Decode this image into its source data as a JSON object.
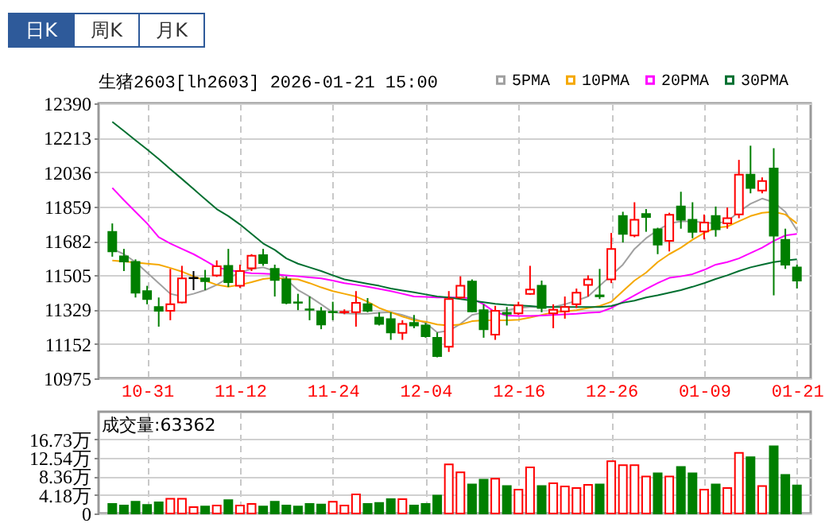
{
  "chart_data": [
    {
      "type": "candlestick",
      "title": "生猪2603[lh2603] 2026-01-21 15:00",
      "annotations": [
        "日K",
        "周K",
        "月K"
      ],
      "categories": [
        null,
        null,
        null,
        "10-31",
        null,
        null,
        null,
        null,
        null,
        null,
        null,
        "11-12",
        null,
        null,
        null,
        null,
        null,
        null,
        null,
        "11-24",
        null,
        null,
        null,
        null,
        null,
        null,
        null,
        "12-04",
        null,
        null,
        null,
        null,
        null,
        null,
        null,
        "12-16",
        null,
        null,
        null,
        null,
        null,
        null,
        null,
        "12-26",
        null,
        null,
        null,
        null,
        null,
        null,
        null,
        "01-09",
        null,
        null,
        null,
        null,
        null,
        null,
        null,
        "01-21"
      ],
      "ohlc": [
        [
          11729,
          11772,
          11601,
          11628
        ],
        [
          11603,
          11641,
          11527,
          11576
        ],
        [
          11574,
          11587,
          11391,
          11416
        ],
        [
          11424,
          11451,
          11356,
          11383
        ],
        [
          11342,
          11391,
          11241,
          11323
        ],
        [
          11323,
          11538,
          11274,
          11356
        ],
        [
          11366,
          11554,
          11361,
          11489
        ],
        [
          11492,
          11527,
          11429,
          11490
        ],
        [
          11489,
          11533,
          11429,
          11475
        ],
        [
          11505,
          11582,
          11497,
          11552
        ],
        [
          11554,
          11641,
          11445,
          11470
        ],
        [
          11451,
          11560,
          11440,
          11527
        ],
        [
          11541,
          11614,
          11527,
          11606
        ],
        [
          11609,
          11641,
          11554,
          11568
        ],
        [
          11538,
          11560,
          11396,
          11481
        ],
        [
          11484,
          11500,
          11356,
          11364
        ],
        [
          11366,
          11410,
          11326,
          11364
        ],
        [
          11330,
          11396,
          11274,
          11328
        ],
        [
          11320,
          11342,
          11228,
          11252
        ],
        [
          11317,
          11369,
          11274,
          11315
        ],
        [
          11315,
          11330,
          11305,
          11317
        ],
        [
          11315,
          11424,
          11241,
          11364
        ],
        [
          11356,
          11388,
          11315,
          11323
        ],
        [
          11288,
          11315,
          11247,
          11255
        ],
        [
          11280,
          11315,
          11173,
          11211
        ],
        [
          11209,
          11274,
          11173,
          11255
        ],
        [
          11260,
          11301,
          11233,
          11247
        ],
        [
          11247,
          11260,
          11184,
          11192
        ],
        [
          11184,
          11211,
          11083,
          11089
        ],
        [
          11138,
          11424,
          11111,
          11383
        ],
        [
          11391,
          11500,
          11383,
          11451
        ],
        [
          11473,
          11484,
          11315,
          11320
        ],
        [
          11326,
          11356,
          11184,
          11228
        ],
        [
          11200,
          11348,
          11173,
          11323
        ],
        [
          11312,
          11342,
          11247,
          11307
        ],
        [
          11309,
          11369,
          11301,
          11350
        ],
        [
          11410,
          11554,
          11405,
          11432
        ],
        [
          11451,
          11478,
          11315,
          11337
        ],
        [
          11309,
          11356,
          11233,
          11328
        ],
        [
          11320,
          11396,
          11282,
          11342
        ],
        [
          11356,
          11437,
          11337,
          11416
        ],
        [
          11456,
          11505,
          11396,
          11484
        ],
        [
          11402,
          11538,
          11383,
          11397
        ],
        [
          11484,
          11723,
          11465,
          11641
        ],
        [
          11810,
          11832,
          11674,
          11718
        ],
        [
          11710,
          11881,
          11701,
          11791
        ],
        [
          11821,
          11846,
          11729,
          11805
        ],
        [
          11742,
          11750,
          11614,
          11663
        ],
        [
          11682,
          11827,
          11628,
          11816
        ],
        [
          11859,
          11935,
          11745,
          11791
        ],
        [
          11791,
          11881,
          11696,
          11729
        ],
        [
          11731,
          11818,
          11690,
          11777
        ],
        [
          11810,
          11859,
          11704,
          11742
        ],
        [
          11772,
          11854,
          11745,
          11799
        ],
        [
          11818,
          12099,
          11799,
          12023
        ],
        [
          12023,
          12172,
          11927,
          11954
        ],
        [
          11941,
          12009,
          11927,
          11990
        ],
        [
          12055,
          12159,
          11402,
          11709
        ],
        [
          11688,
          11745,
          11538,
          11560
        ],
        [
          11546,
          11560,
          11437,
          11478
        ]
      ],
      "colors": [
        "#007f00",
        "#007f00",
        "#007f00",
        "#007f00",
        "#007f00",
        "#ff0000",
        "#ff0000",
        "#000000",
        "#007f00",
        "#ff0000",
        "#007f00",
        "#ff0000",
        "#ff0000",
        "#007f00",
        "#007f00",
        "#007f00",
        "#007f00",
        "#007f00",
        "#007f00",
        "#007f00",
        "#ff0000",
        "#ff0000",
        "#007f00",
        "#007f00",
        "#007f00",
        "#ff0000",
        "#007f00",
        "#007f00",
        "#007f00",
        "#ff0000",
        "#ff0000",
        "#007f00",
        "#007f00",
        "#ff0000",
        "#007f00",
        "#ff0000",
        "#ff0000",
        "#007f00",
        "#ff0000",
        "#ff0000",
        "#ff0000",
        "#ff0000",
        "#007f00",
        "#ff0000",
        "#007f00",
        "#ff0000",
        "#007f00",
        "#007f00",
        "#ff0000",
        "#007f00",
        "#007f00",
        "#ff0000",
        "#007f00",
        "#ff0000",
        "#ff0000",
        "#007f00",
        "#ff0000",
        "#007f00",
        "#007f00",
        "#007f00"
      ],
      "series": [
        {
          "name": "5PMA",
          "type": "line",
          "color": "#a0a0a0",
          "values": [
            11641,
            11614,
            11573,
            11519,
            11465,
            11410,
            11396,
            11410,
            11429,
            11456,
            11492,
            11519,
            11538,
            11546,
            11527,
            11484,
            11429,
            11396,
            11356,
            11315,
            11309,
            11307,
            11307,
            11312,
            11315,
            11301,
            11282,
            11260,
            11211,
            11220,
            11255,
            11301,
            11315,
            11320,
            11326,
            11337,
            11342,
            11342,
            11342,
            11356,
            11375,
            11396,
            11451,
            11505,
            11560,
            11641,
            11696,
            11737,
            11772,
            11783,
            11783,
            11777,
            11772,
            11783,
            11832,
            11873,
            11900,
            11881,
            11832,
            11737
          ]
        },
        {
          "name": "10PMA",
          "type": "line",
          "color": "#f5a800",
          "values": [
            11581,
            11576,
            11571,
            11565,
            11560,
            11543,
            11524,
            11500,
            11478,
            11456,
            11446,
            11456,
            11470,
            11486,
            11492,
            11486,
            11484,
            11465,
            11443,
            11424,
            11410,
            11396,
            11369,
            11337,
            11315,
            11293,
            11274,
            11266,
            11252,
            11247,
            11252,
            11269,
            11274,
            11274,
            11274,
            11277,
            11288,
            11301,
            11315,
            11320,
            11326,
            11337,
            11347,
            11369,
            11424,
            11478,
            11519,
            11573,
            11614,
            11647,
            11688,
            11723,
            11750,
            11756,
            11783,
            11810,
            11827,
            11832,
            11818,
            11772
          ]
        },
        {
          "name": "20PMA",
          "type": "line",
          "color": "#ff00ff",
          "values": [
            11955,
            11892,
            11832,
            11772,
            11701,
            11669,
            11641,
            11614,
            11581,
            11546,
            11533,
            11522,
            11516,
            11514,
            11511,
            11505,
            11500,
            11494,
            11489,
            11478,
            11465,
            11456,
            11446,
            11435,
            11424,
            11410,
            11396,
            11394,
            11391,
            11391,
            11391,
            11386,
            11356,
            11315,
            11298,
            11296,
            11296,
            11298,
            11301,
            11304,
            11307,
            11312,
            11315,
            11337,
            11369,
            11402,
            11435,
            11465,
            11492,
            11500,
            11511,
            11533,
            11560,
            11573,
            11592,
            11620,
            11647,
            11682,
            11710,
            11718
          ]
        },
        {
          "name": "30PMA",
          "type": "line",
          "color": "#006f30",
          "values": [
            12295,
            12248,
            12200,
            12153,
            12104,
            12052,
            12001,
            11949,
            11897,
            11846,
            11810,
            11767,
            11718,
            11669,
            11636,
            11592,
            11565,
            11546,
            11527,
            11505,
            11484,
            11473,
            11462,
            11451,
            11437,
            11427,
            11418,
            11407,
            11396,
            11391,
            11383,
            11375,
            11367,
            11358,
            11353,
            11350,
            11347,
            11342,
            11342,
            11342,
            11342,
            11342,
            11342,
            11347,
            11364,
            11375,
            11391,
            11402,
            11416,
            11429,
            11446,
            11465,
            11486,
            11505,
            11527,
            11546,
            11560,
            11573,
            11581,
            11587
          ]
        }
      ],
      "ylim": [
        10975,
        12390
      ],
      "yticks": [
        10975,
        11152,
        11329,
        11505,
        11682,
        11859,
        12036,
        12213,
        12390
      ],
      "grid": true,
      "legend": "top right"
    },
    {
      "type": "bar",
      "title": "成交量:63362",
      "categories": [
        null,
        null,
        null,
        null,
        null,
        null,
        null,
        null,
        null,
        null,
        null,
        null,
        null,
        null,
        null,
        null,
        null,
        null,
        null,
        null,
        null,
        null,
        null,
        null,
        null,
        null,
        null,
        null,
        null,
        null,
        null,
        null,
        null,
        null,
        null,
        null,
        null,
        null,
        null,
        null,
        null,
        null,
        null,
        null,
        null,
        null,
        null,
        null,
        null,
        null,
        null,
        null,
        null,
        null,
        null,
        null,
        null,
        null,
        null,
        null
      ],
      "values": [
        2.15,
        1.79,
        2.63,
        1.91,
        2.51,
        3.34,
        3.34,
        1.43,
        1.55,
        1.79,
        2.99,
        1.79,
        2.15,
        1.55,
        2.63,
        1.79,
        1.55,
        2.15,
        2.03,
        2.63,
        1.79,
        4.3,
        2.15,
        2.39,
        3.22,
        3.22,
        1.79,
        2.15,
        4.06,
        11.1,
        9.31,
        6.57,
        7.64,
        7.88,
        6.21,
        5.37,
        10.4,
        6.21,
        6.81,
        6.09,
        5.73,
        6.45,
        6.57,
        11.8,
        10.9,
        10.9,
        8.36,
        9.07,
        8.36,
        10.5,
        9.07,
        5.37,
        6.57,
        5.73,
        13.7,
        12.7,
        6.21,
        15.2,
        8.72,
        6.34
      ],
      "colors": [
        "#007f00",
        "#007f00",
        "#007f00",
        "#007f00",
        "#007f00",
        "#ff0000",
        "#ff0000",
        "#ff0000",
        "#007f00",
        "#ff0000",
        "#007f00",
        "#ff0000",
        "#ff0000",
        "#007f00",
        "#007f00",
        "#007f00",
        "#007f00",
        "#007f00",
        "#007f00",
        "#ff0000",
        "#ff0000",
        "#ff0000",
        "#007f00",
        "#007f00",
        "#007f00",
        "#ff0000",
        "#007f00",
        "#007f00",
        "#007f00",
        "#ff0000",
        "#ff0000",
        "#007f00",
        "#007f00",
        "#ff0000",
        "#007f00",
        "#ff0000",
        "#ff0000",
        "#007f00",
        "#ff0000",
        "#ff0000",
        "#ff0000",
        "#ff0000",
        "#007f00",
        "#ff0000",
        "#ff0000",
        "#ff0000",
        "#ff0000",
        "#007f00",
        "#ff0000",
        "#007f00",
        "#007f00",
        "#ff0000",
        "#007f00",
        "#ff0000",
        "#ff0000",
        "#007f00",
        "#ff0000",
        "#007f00",
        "#007f00",
        "#007f00"
      ],
      "ylim": [
        0,
        23
      ],
      "yticks": [
        0,
        {
          "value": 4.18,
          "label": "4.18万"
        },
        {
          "value": 8.36,
          "label": "8.36万"
        },
        {
          "value": 12.54,
          "label": "12.54万"
        },
        {
          "value": 16.73,
          "label": "16.73万"
        }
      ],
      "grid": true,
      "tick_labels": "y"
    }
  ]
}
